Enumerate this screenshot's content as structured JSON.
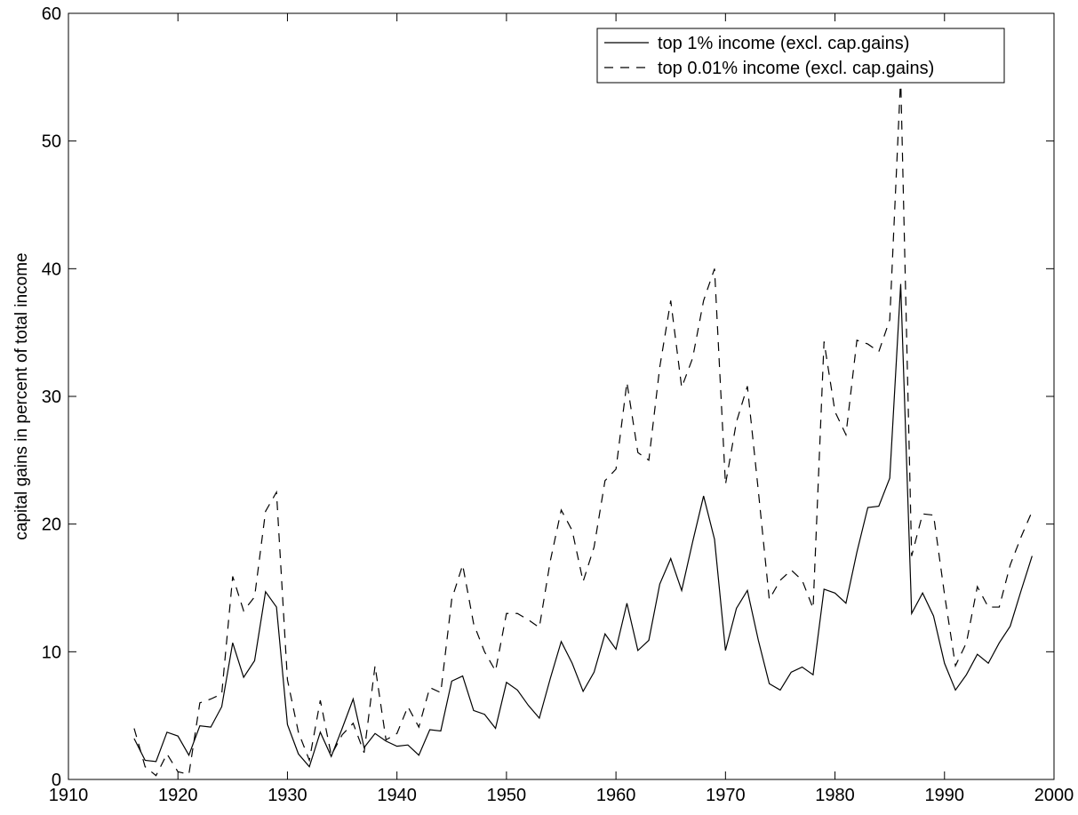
{
  "chart_data": {
    "type": "line",
    "ylabel": "capital gains in percent of total income",
    "x": [
      1916,
      1917,
      1918,
      1919,
      1920,
      1921,
      1922,
      1923,
      1924,
      1925,
      1926,
      1927,
      1928,
      1929,
      1930,
      1931,
      1932,
      1933,
      1934,
      1935,
      1936,
      1937,
      1938,
      1939,
      1940,
      1941,
      1942,
      1943,
      1944,
      1945,
      1946,
      1947,
      1948,
      1949,
      1950,
      1951,
      1952,
      1953,
      1954,
      1955,
      1956,
      1957,
      1958,
      1959,
      1960,
      1961,
      1962,
      1963,
      1964,
      1965,
      1966,
      1967,
      1968,
      1969,
      1970,
      1971,
      1972,
      1973,
      1974,
      1975,
      1976,
      1977,
      1978,
      1979,
      1980,
      1981,
      1982,
      1983,
      1984,
      1985,
      1986,
      1987,
      1988,
      1989,
      1990,
      1991,
      1992,
      1993,
      1994,
      1995,
      1996,
      1997,
      1998
    ],
    "series": [
      {
        "name": "top 1% income (excl. cap.gains)",
        "color": "#000000",
        "line_style": "solid",
        "values": [
          3.2,
          1.5,
          1.4,
          3.7,
          3.4,
          1.9,
          4.2,
          4.1,
          5.7,
          10.7,
          8.0,
          9.3,
          14.7,
          13.5,
          4.3,
          2.0,
          1.0,
          3.7,
          1.8,
          4.0,
          6.3,
          2.5,
          3.6,
          3.0,
          2.6,
          2.7,
          1.9,
          3.9,
          3.8,
          7.7,
          8.1,
          5.4,
          5.1,
          4.0,
          7.6,
          7.0,
          5.8,
          4.8,
          7.9,
          10.8,
          9.1,
          6.9,
          8.4,
          11.4,
          10.2,
          13.8,
          10.1,
          10.9,
          15.3,
          17.3,
          14.8,
          18.6,
          22.2,
          18.8,
          10.1,
          13.4,
          14.8,
          10.9,
          7.5,
          7.0,
          8.4,
          8.8,
          8.2,
          14.9,
          14.6,
          13.8,
          17.8,
          21.3,
          21.4,
          23.6,
          38.8,
          13.0,
          14.6,
          12.8,
          9.1,
          7.0,
          8.2,
          9.8,
          9.1,
          10.7,
          12.0,
          14.8,
          17.5
        ]
      },
      {
        "name": "top 0.01% income (excl. cap.gains)",
        "color": "#000000",
        "line_style": "dashed",
        "values": [
          4.0,
          1.0,
          0.3,
          2.0,
          0.6,
          0.4,
          6.0,
          6.3,
          6.7,
          15.9,
          13.2,
          14.3,
          21.0,
          22.5,
          7.8,
          3.7,
          1.5,
          6.2,
          1.9,
          3.5,
          4.4,
          2.1,
          8.9,
          3.1,
          3.6,
          5.7,
          4.1,
          7.2,
          6.8,
          14.1,
          16.8,
          12.2,
          10.0,
          8.5,
          13.0,
          13.0,
          12.5,
          11.9,
          17.1,
          21.1,
          19.5,
          15.5,
          18.2,
          23.4,
          24.3,
          31.1,
          25.6,
          25.0,
          32.3,
          37.5,
          30.7,
          33.0,
          37.5,
          40.0,
          23.1,
          28.0,
          30.8,
          22.6,
          14.1,
          15.6,
          16.4,
          15.6,
          13.4,
          34.3,
          28.8,
          27.0,
          34.4,
          34.1,
          33.5,
          36.0,
          55.0,
          17.5,
          20.8,
          20.7,
          14.5,
          8.9,
          10.7,
          15.1,
          13.5,
          13.5,
          16.8,
          19.0,
          21.0
        ]
      }
    ],
    "xlim": [
      1910,
      2000
    ],
    "xticks": [
      1910,
      1920,
      1930,
      1940,
      1950,
      1960,
      1970,
      1980,
      1990,
      2000
    ],
    "ylim": [
      0,
      60
    ],
    "yticks": [
      0,
      10,
      20,
      30,
      40,
      50,
      60
    ],
    "grid": false,
    "legend": "upper right"
  }
}
